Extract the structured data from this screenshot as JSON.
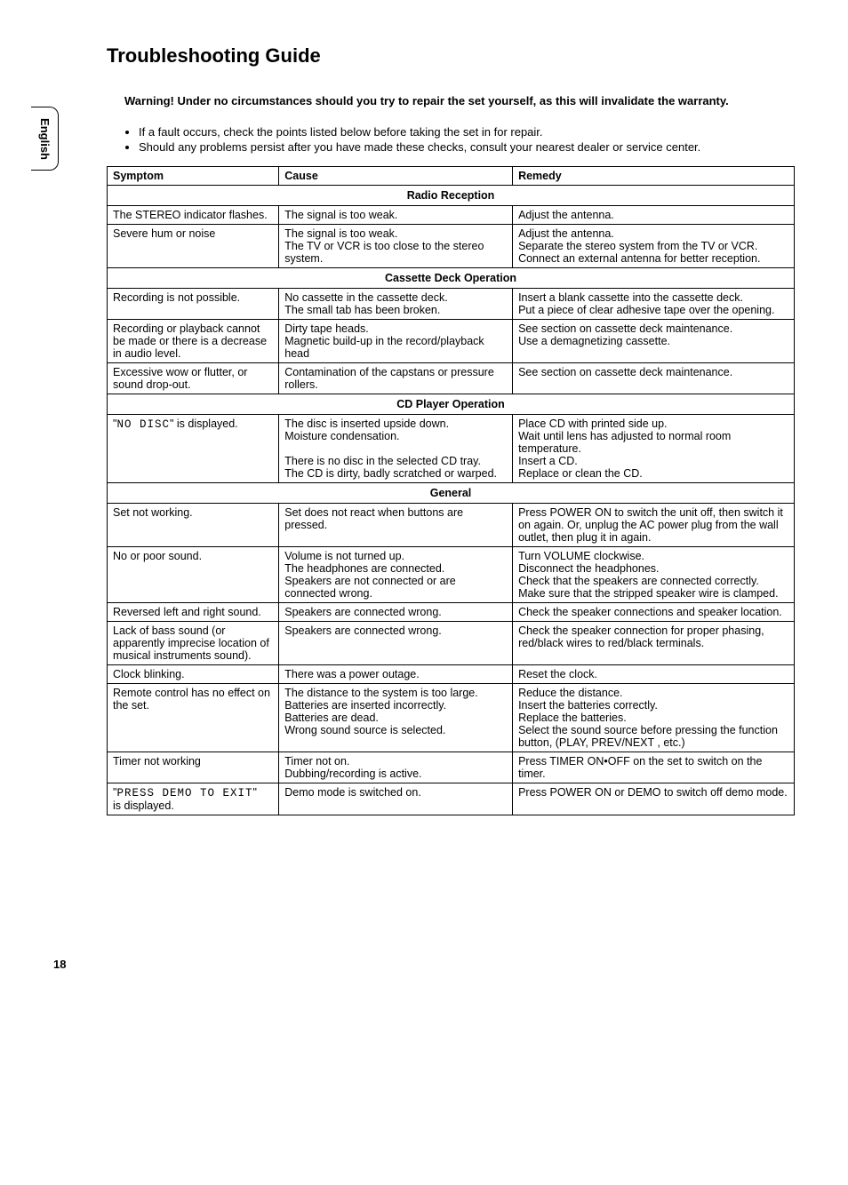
{
  "sideTab": "English",
  "title": "Troubleshooting Guide",
  "warning": "Warning!  Under no circumstances should you try to repair the set yourself, as this will invalidate the warranty.",
  "intro": [
    "If a fault occurs, check the points listed below before taking the set in for repair.",
    "Should any problems persist after you have made these checks, consult your nearest dealer or service center."
  ],
  "headers": {
    "symptom": "Symptom",
    "cause": "Cause",
    "remedy": "Remedy"
  },
  "sections": {
    "radio": "Radio Reception",
    "cassette": "Cassette Deck Operation",
    "cd": "CD Player Operation",
    "general": "General"
  },
  "rows": {
    "r1": {
      "s": "The STEREO indicator flashes.",
      "c": "The signal is too weak.",
      "r": "Adjust the antenna."
    },
    "r2": {
      "s": "Severe hum or noise",
      "c": "The signal is too weak.\nThe TV or VCR is too close to the stereo system.",
      "r": "Adjust the antenna.\nSeparate the stereo system from the TV or VCR.\nConnect an external antenna for better reception."
    },
    "r3": {
      "s": "Recording is not possible.",
      "c": "No cassette in the cassette deck.\nThe small tab has been broken.",
      "r": "Insert a blank cassette into the cassette deck.\nPut a piece of clear adhesive tape over the opening."
    },
    "r4": {
      "s": "Recording or playback cannot be made or there is a decrease in audio level.",
      "c": "Dirty tape heads.\nMagnetic build-up in the record/playback head",
      "r": "See section on cassette deck maintenance.\nUse a demagnetizing cassette."
    },
    "r5": {
      "s": "Excessive wow or flutter, or sound drop-out.",
      "c": "Contamination of the capstans or pressure rollers.",
      "r": "See section on cassette deck maintenance."
    },
    "r6": {
      "sPre": "\"",
      "sMono": "NO DISC",
      "sPost": "\" is displayed.",
      "c": "The disc is inserted upside down.\nMoisture condensation.\n\nThere is no disc in the selected CD tray.\nThe CD is dirty, badly scratched or warped.",
      "r": "Place CD with printed side up.\nWait until lens has adjusted to normal room temperature.\nInsert a CD.\nReplace or clean the CD."
    },
    "r7": {
      "s": "Set not working.",
      "c": "Set does not react when buttons are pressed.",
      "r": "Press POWER ON to switch the unit off, then switch it on again. Or, unplug the AC power plug from the wall outlet, then plug it in again."
    },
    "r8": {
      "s": "No or poor sound.",
      "c": "Volume is not turned up.\nThe headphones are connected.\nSpeakers are not connected or are connected wrong.",
      "r": "Turn VOLUME clockwise.\nDisconnect the headphones.\nCheck that the speakers are connected correctly.\nMake sure that the stripped speaker wire is clamped."
    },
    "r9": {
      "s": "Reversed left and right sound.",
      "c": "Speakers are connected wrong.",
      "r": "Check the speaker connections and speaker location."
    },
    "r10": {
      "s": "Lack of bass sound (or apparently imprecise location of musical instruments sound).",
      "c": "Speakers are connected wrong.",
      "r": "Check the speaker connection for proper phasing, red/black wires to red/black terminals."
    },
    "r11": {
      "s": "Clock blinking.",
      "c": "There was a power outage.",
      "r": "Reset the clock."
    },
    "r12": {
      "s": "Remote control has no effect on the set.",
      "c": "The distance to the system is too large.\nBatteries are inserted incorrectly.\nBatteries are dead.\nWrong sound source is selected.",
      "r": "Reduce the distance.\nInsert the batteries correctly.\nReplace the batteries.\nSelect the sound source before pressing the function button, (PLAY, PREV/NEXT , etc.)"
    },
    "r13": {
      "s": "Timer not working",
      "c": "Timer not on.\nDubbing/recording is active.",
      "r": "Press TIMER ON•OFF on the set to switch on the timer."
    },
    "r14": {
      "sPre": "\"",
      "sMono": "PRESS DEMO TO EXIT",
      "sPost": "\"\nis displayed.",
      "c": "Demo mode is switched on.",
      "r": "Press POWER ON or DEMO to switch off demo mode."
    }
  },
  "pageNumber": "18"
}
